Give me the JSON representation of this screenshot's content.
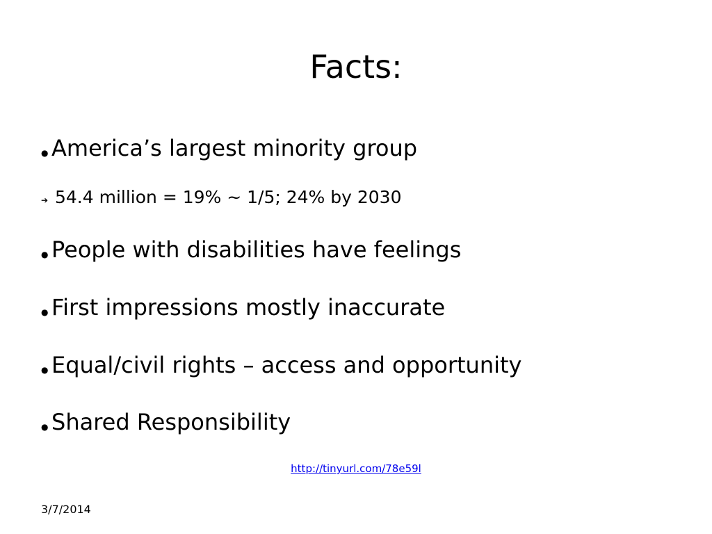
{
  "slide": {
    "title": "Facts:",
    "bullets": [
      {
        "marker": "●",
        "text": "America’s largest minority group",
        "level": 1
      },
      {
        "marker": "➔",
        "text": "54.4 million = 19% ~ 1/5; 24% by 2030",
        "level": 2
      },
      {
        "marker": "●",
        "text": "People with disabilities have feelings",
        "level": 1
      },
      {
        "marker": "●",
        "text": "First impressions mostly inaccurate",
        "level": 1
      },
      {
        "marker": "●",
        "text": "Equal/civil rights – access and opportunity",
        "level": 1
      },
      {
        "marker": "●",
        "text": "Shared Responsibility",
        "level": 1
      }
    ],
    "link_text": "http://tinyurl.com/78e59l",
    "date": "3/7/2014",
    "link_color": "#0000ee"
  }
}
